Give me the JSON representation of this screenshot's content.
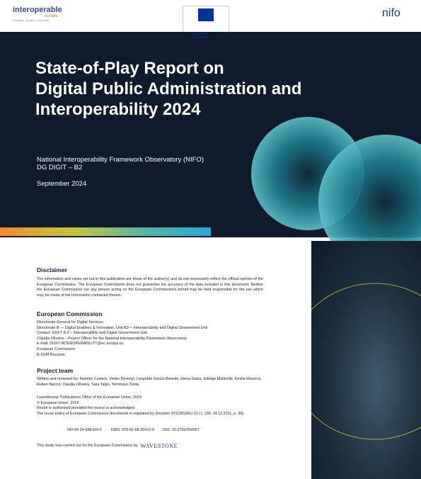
{
  "header": {
    "logo_main": "interoperable",
    "logo_sub": "europe",
    "logo_tagline": "innovation · govtech · community",
    "ec_logo": "European Commission",
    "nifo_logo": "nifo"
  },
  "cover": {
    "title_lines": [
      "State-of-Play Report on",
      "Digital Public Administration and",
      "Interoperability 2024"
    ],
    "subtitle_lines": [
      "National Interoperability Framework Observatory (NIFO)",
      "DG DIGIT – B2"
    ],
    "date": "September 2024"
  },
  "disclaimer": {
    "heading": "Disclaimer",
    "text": "The information and views set out in this publication are those of the author(s) and do not necessarily reflect the official opinion of the European Commission. The European Commission does not guarantee the accuracy of the data included in this document. Neither the European Commission nor any person acting on the European Commission's behalf may be held responsible for the use which may be made of the information contained therein."
  },
  "commission": {
    "heading": "European Commission",
    "lines": [
      "Directorate-General for Digital Services",
      "Directorate B — Digital Enablers & Innovation, Unit B2— Interoperability and Digital Government Unit",
      "Contact: DIGIT B.2 – Interoperability and Digital Government Unit",
      "Claudia Oliveira – Project Officer for the National Interoperability Framework Observatory",
      "E-mail: DIGIT-INTEROPERABILITY@ec.europa.eu",
      "European Commission",
      "B-1049 Brussels"
    ]
  },
  "team": {
    "heading": "Project team",
    "text": "Written and reviewed by: Noémie Custers, Vivien Devenyi, Leopoldo Garcia Beneito, Elena Gazia, Edwige Malleville, Emilia Miscenà, Ruben Narzul, Claudia Oliveira, Sara Talpo, Tommaso Zonta."
  },
  "publication": {
    "lines": [
      "Luxembourg: Publications Office of the European Union, 2024",
      "© European Union, 2024",
      "Reuse is authorised provided the source is acknowledged.",
      "The reuse policy of European Commission documents is regulated by Decision 2011/833/EU (OJ L 330, 14.12.2011, p. 39)."
    ],
    "identifiers": [
      "NO-09-24-698-EN-C",
      "ISBN: 978-92-68-20410-8",
      "DOI: 10.2799/954057"
    ]
  },
  "footer": {
    "text": "This study was carried out for the European Commission by",
    "company": "WAVESTONE"
  }
}
